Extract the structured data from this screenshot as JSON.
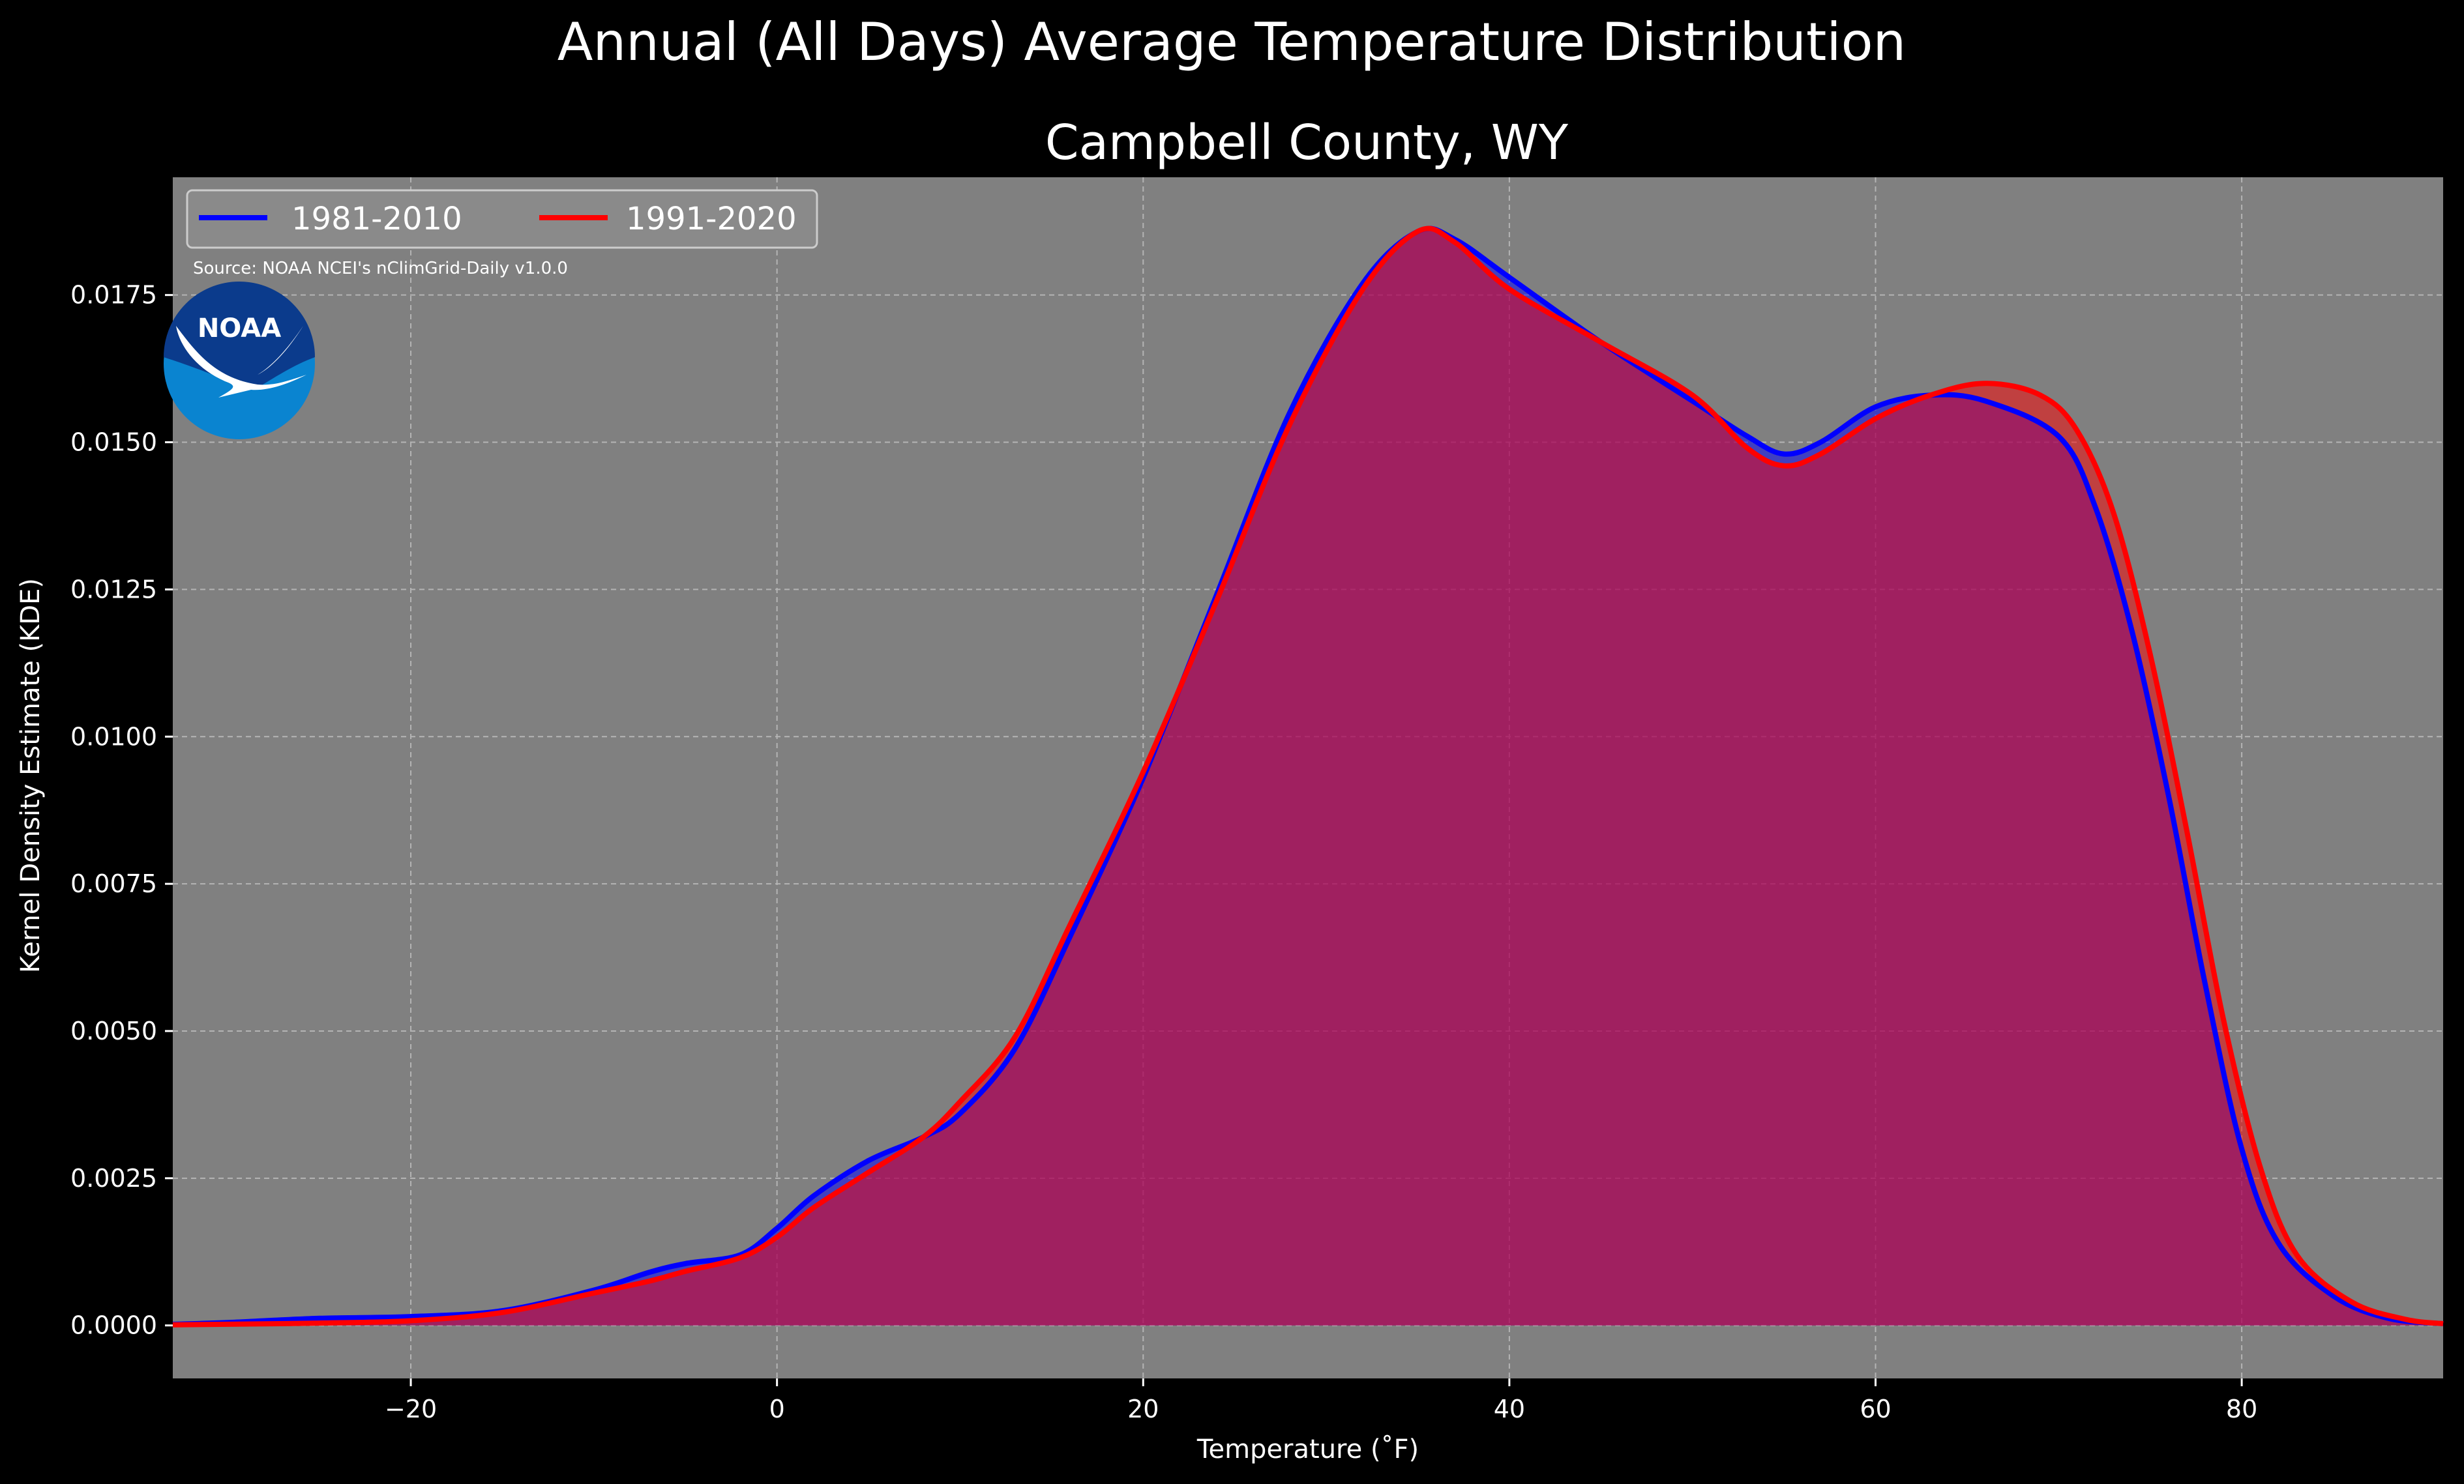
{
  "chart_data": {
    "type": "area",
    "suptitle": "Annual (All Days) Average Temperature Distribution",
    "title": "Campbell County, WY",
    "xlabel": "Temperature (˚F)",
    "ylabel": "Kernel Density Estimate (KDE)",
    "xlim": [
      -33,
      91
    ],
    "ylim": [
      -0.0009,
      0.0195
    ],
    "xticks": [
      -20,
      0,
      20,
      40,
      60,
      80
    ],
    "xtick_labels": [
      "−20",
      "0",
      "20",
      "40",
      "60",
      "80"
    ],
    "yticks": [
      0.0,
      0.0025,
      0.005,
      0.0075,
      0.01,
      0.0125,
      0.015,
      0.0175
    ],
    "ytick_labels": [
      "0.0000",
      "0.0025",
      "0.0050",
      "0.0075",
      "0.0100",
      "0.0125",
      "0.0150",
      "0.0175"
    ],
    "grid": true,
    "legend_position": "top-left",
    "source_note": "Source: NOAA NCEI's nClimGrid-Daily v1.0.0",
    "logo_text": "NOAA",
    "series": [
      {
        "name": "1981-2010",
        "color": "#0000ff",
        "points": [
          [
            -33,
            2e-05
          ],
          [
            -30,
            5e-05
          ],
          [
            -25,
            0.00012
          ],
          [
            -20,
            0.00015
          ],
          [
            -15,
            0.00025
          ],
          [
            -10,
            0.0006
          ],
          [
            -7,
            0.0009
          ],
          [
            -5,
            0.00105
          ],
          [
            -2,
            0.0012
          ],
          [
            0,
            0.00165
          ],
          [
            2,
            0.0022
          ],
          [
            5,
            0.0028
          ],
          [
            8,
            0.0032
          ],
          [
            10,
            0.0036
          ],
          [
            13,
            0.0047
          ],
          [
            16,
            0.0066
          ],
          [
            20,
            0.0093
          ],
          [
            24,
            0.0124
          ],
          [
            28,
            0.0155
          ],
          [
            32,
            0.0177
          ],
          [
            35,
            0.01858
          ],
          [
            37,
            0.01845
          ],
          [
            40,
            0.0178
          ],
          [
            45,
            0.0167
          ],
          [
            50,
            0.0157
          ],
          [
            53,
            0.0151
          ],
          [
            55,
            0.0148
          ],
          [
            57,
            0.015
          ],
          [
            60,
            0.0156
          ],
          [
            63,
            0.0158
          ],
          [
            66,
            0.0157
          ],
          [
            70,
            0.0151
          ],
          [
            72,
            0.0139
          ],
          [
            74,
            0.0118
          ],
          [
            76,
            0.009
          ],
          [
            78,
            0.0058
          ],
          [
            80,
            0.003
          ],
          [
            82,
            0.0014
          ],
          [
            85,
            0.0005
          ],
          [
            88,
            0.00012
          ],
          [
            91,
            3e-05
          ]
        ]
      },
      {
        "name": "1991-2020",
        "color": "#ff0000",
        "points": [
          [
            -33,
            1e-05
          ],
          [
            -30,
            2e-05
          ],
          [
            -25,
            4e-05
          ],
          [
            -20,
            8e-05
          ],
          [
            -15,
            0.00022
          ],
          [
            -10,
            0.00055
          ],
          [
            -7,
            0.00075
          ],
          [
            -5,
            0.00092
          ],
          [
            -2,
            0.00115
          ],
          [
            0,
            0.0015
          ],
          [
            2,
            0.002
          ],
          [
            5,
            0.0026
          ],
          [
            8,
            0.0032
          ],
          [
            10,
            0.0038
          ],
          [
            13,
            0.0049
          ],
          [
            16,
            0.0068
          ],
          [
            20,
            0.0094
          ],
          [
            24,
            0.0123
          ],
          [
            28,
            0.0153
          ],
          [
            32,
            0.0176
          ],
          [
            35,
            0.01858
          ],
          [
            37,
            0.0184
          ],
          [
            40,
            0.0176
          ],
          [
            45,
            0.0167
          ],
          [
            50,
            0.0158
          ],
          [
            53,
            0.0149
          ],
          [
            55,
            0.0146
          ],
          [
            57,
            0.0148
          ],
          [
            60,
            0.0154
          ],
          [
            63,
            0.0158
          ],
          [
            66,
            0.016
          ],
          [
            69,
            0.0158
          ],
          [
            71,
            0.0152
          ],
          [
            73,
            0.0138
          ],
          [
            75,
            0.0114
          ],
          [
            77,
            0.0084
          ],
          [
            79,
            0.0052
          ],
          [
            81,
            0.0027
          ],
          [
            83,
            0.0012
          ],
          [
            86,
            0.0004
          ],
          [
            89,
            0.0001
          ],
          [
            91,
            3e-05
          ]
        ]
      }
    ]
  }
}
